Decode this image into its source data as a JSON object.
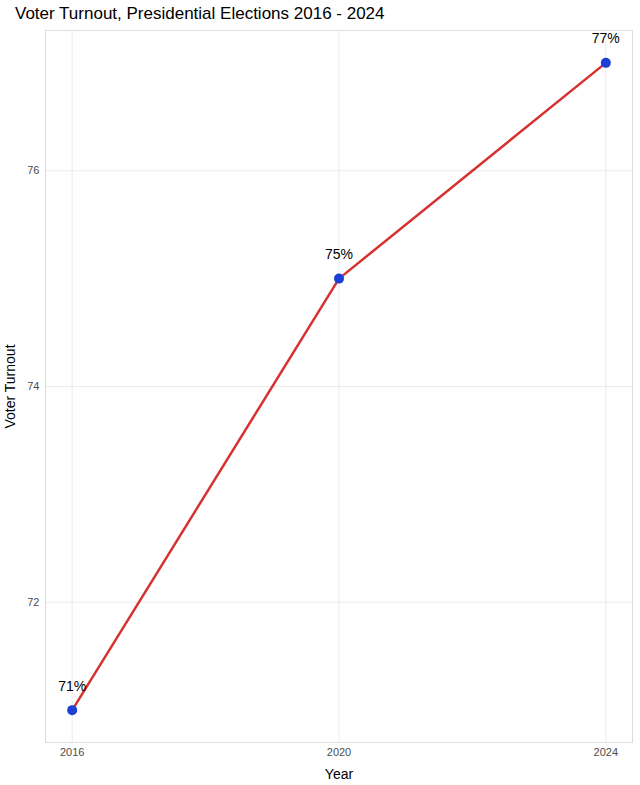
{
  "chart_data": {
    "type": "line",
    "title": "Voter Turnout, Presidential Elections 2016 - 2024",
    "x_label": "Year",
    "y_label": "Voter Turnout",
    "x": [
      2016,
      2020,
      2024
    ],
    "values": [
      71,
      75,
      77
    ],
    "value_labels": [
      "71%",
      "75%",
      "77%"
    ],
    "data_labels": true,
    "color": "#d63230",
    "colors": [
      "#1c3fd6",
      "#1c3fd6",
      "#1c3fd6"
    ],
    "marker": "circle",
    "xlim": [
      2015.6,
      2024.4
    ],
    "xticks": [
      2016,
      2020,
      2024
    ],
    "ylim": [
      70.7,
      77.3
    ],
    "yticks": [
      72,
      74,
      76
    ],
    "grid": true
  }
}
